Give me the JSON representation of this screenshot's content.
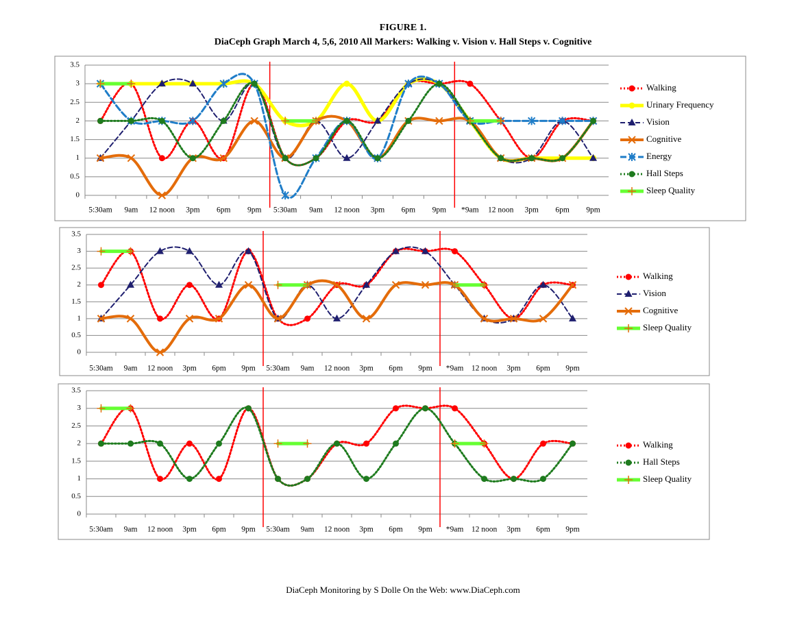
{
  "title": "FIGURE 1.",
  "subtitle": "DiaCeph Graph March 4, 5,6, 2010 All Markers: Walking v. Vision v. Hall Steps v. Cognitive",
  "footer": "DiaCeph Monitoring by S Dolle   On the Web: www.DiaCeph.com",
  "chart_data": [
    {
      "type": "line",
      "ylim": [
        0,
        3.5
      ],
      "yticks": [
        0,
        0.5,
        1,
        1.5,
        2,
        2.5,
        3,
        3.5
      ],
      "grid": true,
      "legend": "right",
      "categories": [
        "5:30am",
        "9am",
        "12 noon",
        "3pm",
        "6pm",
        "9pm",
        "5:30am",
        "9am",
        "12 noon",
        "3pm",
        "6pm",
        "9pm",
        "*9am",
        "12 noon",
        "3pm",
        "6pm",
        "9pm"
      ],
      "series": [
        {
          "name": "Walking",
          "color": "#ff0000",
          "values": [
            2,
            3,
            1,
            2,
            1,
            3,
            1,
            1,
            2,
            2,
            3,
            3,
            3,
            2,
            1,
            2,
            2
          ]
        },
        {
          "name": "Urinary Frequency",
          "color": "#ffff00",
          "values": [
            3,
            3,
            3,
            3,
            3,
            3,
            2,
            2,
            3,
            2,
            3,
            3,
            2,
            1,
            1,
            1,
            1
          ]
        },
        {
          "name": "Vision",
          "color": "#1f1f6f",
          "values": [
            1,
            2,
            3,
            3,
            2,
            3,
            1,
            2,
            1,
            2,
            3,
            3,
            2,
            1,
            1,
            2,
            1
          ]
        },
        {
          "name": "Cognitive",
          "color": "#e46c0a",
          "values": [
            1,
            1,
            0,
            1,
            1,
            2,
            1,
            2,
            2,
            1,
            2,
            2,
            2,
            1,
            1,
            1,
            2
          ]
        },
        {
          "name": "Energy",
          "color": "#1f7dc8",
          "values": [
            3,
            2,
            2,
            2,
            3,
            3,
            0,
            1,
            2,
            1,
            3,
            3,
            2,
            2,
            2,
            2,
            2
          ]
        },
        {
          "name": "Hall Steps",
          "color": "#1e7b1e",
          "values": [
            2,
            2,
            2,
            1,
            2,
            3,
            1,
            1,
            2,
            1,
            2,
            3,
            2,
            1,
            1,
            1,
            2
          ]
        },
        {
          "name": "Sleep Quality",
          "color": "#66ff33",
          "values": [
            3,
            3,
            null,
            null,
            null,
            null,
            2,
            2,
            null,
            null,
            null,
            null,
            2,
            2,
            null,
            null,
            null
          ]
        }
      ]
    },
    {
      "type": "line",
      "ylim": [
        0,
        3.5
      ],
      "yticks": [
        0,
        0.5,
        1,
        1.5,
        2,
        2.5,
        3,
        3.5
      ],
      "grid": true,
      "legend": "right",
      "categories": [
        "5:30am",
        "9am",
        "12 noon",
        "3pm",
        "6pm",
        "9pm",
        "5:30am",
        "9am",
        "12 noon",
        "3pm",
        "6pm",
        "9pm",
        "*9am",
        "12 noon",
        "3pm",
        "6pm",
        "9pm"
      ],
      "series": [
        {
          "name": "Walking",
          "color": "#ff0000",
          "values": [
            2,
            3,
            1,
            2,
            1,
            3,
            1,
            1,
            2,
            2,
            3,
            3,
            3,
            2,
            1,
            2,
            2
          ]
        },
        {
          "name": "Vision",
          "color": "#1f1f6f",
          "values": [
            1,
            2,
            3,
            3,
            2,
            3,
            1,
            2,
            1,
            2,
            3,
            3,
            2,
            1,
            1,
            2,
            1
          ]
        },
        {
          "name": "Cognitive",
          "color": "#e46c0a",
          "values": [
            1,
            1,
            0,
            1,
            1,
            2,
            1,
            2,
            2,
            1,
            2,
            2,
            2,
            1,
            1,
            1,
            2
          ]
        },
        {
          "name": "Sleep Quality",
          "color": "#66ff33",
          "values": [
            3,
            3,
            null,
            null,
            null,
            null,
            2,
            2,
            null,
            null,
            null,
            null,
            2,
            2,
            null,
            null,
            null
          ]
        }
      ]
    },
    {
      "type": "line",
      "ylim": [
        0,
        3.5
      ],
      "yticks": [
        0,
        0.5,
        1,
        1.5,
        2,
        2.5,
        3,
        3.5
      ],
      "grid": true,
      "legend": "right",
      "categories": [
        "5:30am",
        "9am",
        "12 noon",
        "3pm",
        "6pm",
        "9pm",
        "5:30am",
        "9am",
        "12 noon",
        "3pm",
        "6pm",
        "9pm",
        "*9am",
        "12 noon",
        "3pm",
        "6pm",
        "9pm"
      ],
      "series": [
        {
          "name": "Walking",
          "color": "#ff0000",
          "values": [
            2,
            3,
            1,
            2,
            1,
            3,
            1,
            1,
            2,
            2,
            3,
            3,
            3,
            2,
            1,
            2,
            2
          ]
        },
        {
          "name": "Hall Steps",
          "color": "#1e7b1e",
          "values": [
            2,
            2,
            2,
            1,
            2,
            3,
            1,
            1,
            2,
            1,
            2,
            3,
            2,
            1,
            1,
            1,
            2
          ]
        },
        {
          "name": "Sleep Quality",
          "color": "#66ff33",
          "values": [
            3,
            3,
            null,
            null,
            null,
            null,
            2,
            2,
            null,
            null,
            null,
            null,
            2,
            2,
            null,
            null,
            null
          ]
        }
      ]
    }
  ]
}
